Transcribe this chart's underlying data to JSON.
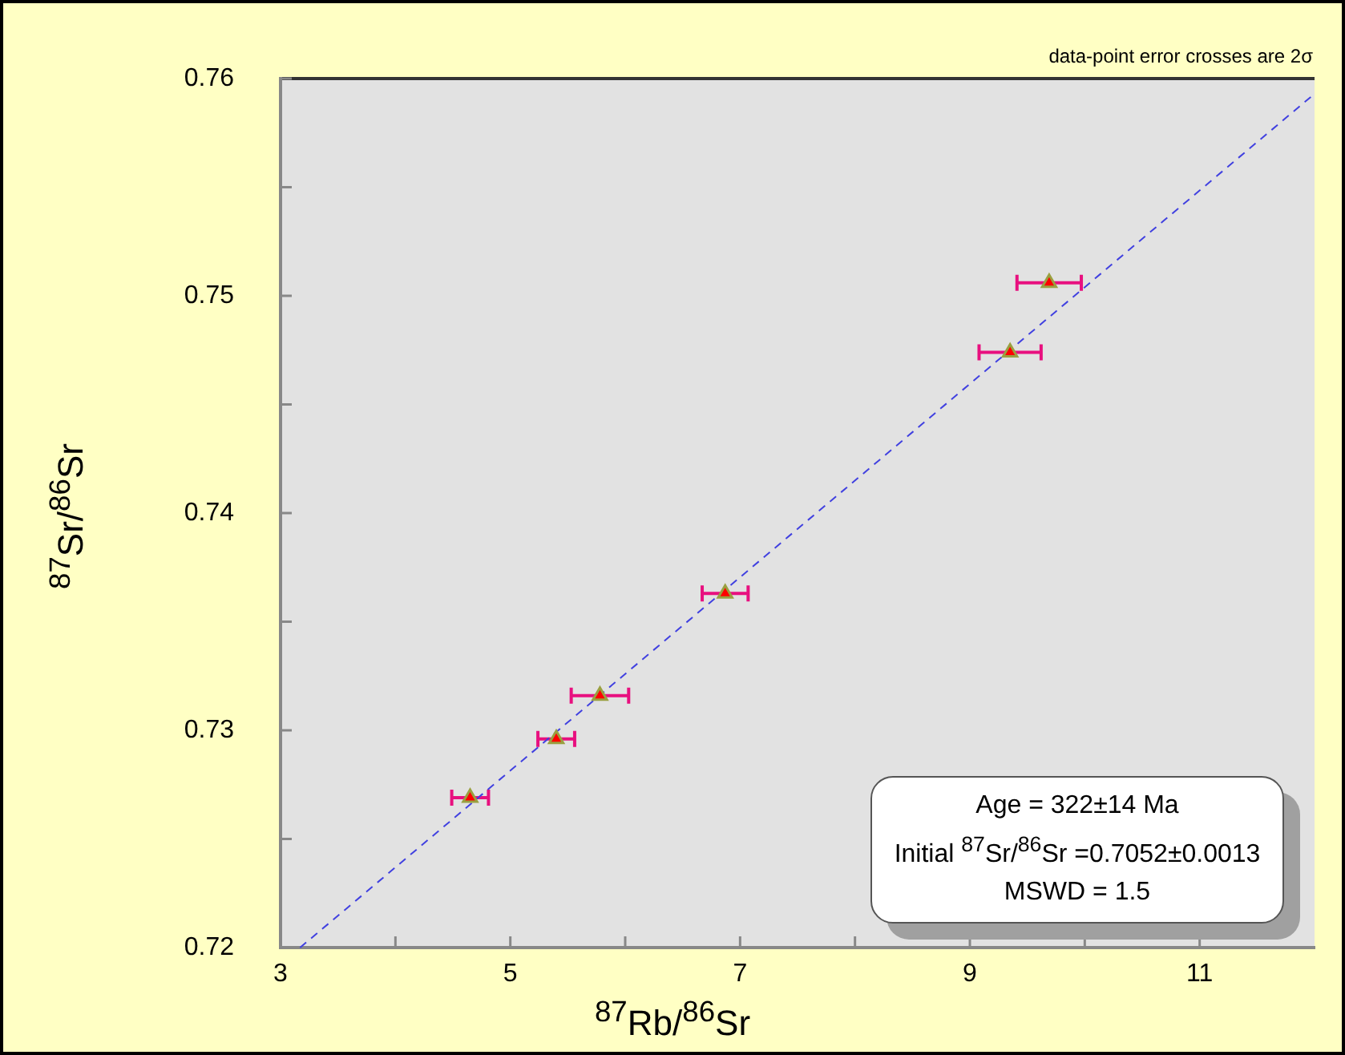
{
  "chart_data": {
    "type": "scatter",
    "xlabel": "$^{87}$Rb/$^{86}$Sr",
    "ylabel": "$^{87}$Sr/$^{86}$Sr",
    "xlim": [
      3,
      12
    ],
    "xticks": [
      3,
      {
        "value": 4,
        "label": null
      },
      5,
      {
        "value": 6,
        "label": null
      },
      7,
      {
        "value": 8,
        "label": null
      },
      9,
      {
        "value": 10,
        "label": null
      },
      11
    ],
    "ylim": [
      0.72,
      0.76
    ],
    "yticks": [
      0.72,
      {
        "value": 0.725,
        "label": null
      },
      0.73,
      {
        "value": 0.735,
        "label": null
      },
      0.74,
      {
        "value": 0.745,
        "label": null
      },
      0.75,
      {
        "value": 0.755,
        "label": null
      },
      0.76
    ],
    "grid": false,
    "legend": false,
    "series": [
      {
        "type": "scatter",
        "color": "#ff0000",
        "marker": "triangle",
        "x": [
          4.65,
          5.4,
          5.78,
          6.87,
          9.35,
          9.69
        ],
        "values": [
          0.7269,
          0.7296,
          0.7316,
          0.7363,
          0.7474,
          0.7506
        ],
        "xerrors": [
          0.16,
          0.16,
          0.25,
          0.2,
          0.27,
          0.28
        ]
      },
      {
        "type": "line",
        "color": "#4040e0",
        "marker": "none",
        "line_style": "dashed",
        "x": [
          3.17,
          12
        ],
        "values": [
          0.72,
          0.7593
        ]
      }
    ],
    "annotations": [
      "data-point error crosses are 2σ",
      "Age = 322±14 Ma",
      "Initial $^{87}$Sr/$^{86}$Sr =0.7052±0.0013",
      "MSWD = 1.5"
    ]
  }
}
